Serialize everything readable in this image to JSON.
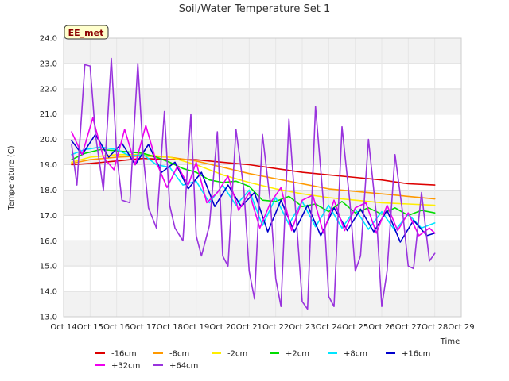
{
  "chart_data": {
    "type": "line",
    "title": "Soil/Water Temperature Set 1",
    "xlabel": "Time",
    "ylabel": "Temperature (C)",
    "badge": "EE_met",
    "x_ticks": [
      "Oct 14",
      "Oct 15",
      "Oct 16",
      "Oct 17",
      "Oct 18",
      "Oct 19",
      "Oct 20",
      "Oct 21",
      "Oct 22",
      "Oct 23",
      "Oct 24",
      "Oct 25",
      "Oct 26",
      "Oct 27",
      "Oct 28",
      "Oct 29"
    ],
    "xlim": [
      14,
      29
    ],
    "ylim": [
      13.0,
      24.0
    ],
    "y_ticks": [
      13.0,
      14.0,
      15.0,
      16.0,
      17.0,
      18.0,
      19.0,
      20.0,
      21.0,
      22.0,
      23.0,
      24.0
    ],
    "grid": true,
    "legend_position": "bottom",
    "series": [
      {
        "name": "-16cm",
        "color": "#dd0000",
        "x": [
          14.3,
          15,
          16,
          17,
          18,
          19,
          20,
          21,
          22,
          23,
          24,
          25,
          26,
          27,
          28
        ],
        "y": [
          19.0,
          19.05,
          19.15,
          19.25,
          19.2,
          19.2,
          19.1,
          19.0,
          18.85,
          18.7,
          18.6,
          18.5,
          18.4,
          18.25,
          18.2
        ]
      },
      {
        "name": "-8cm",
        "color": "#ff9900",
        "x": [
          14.3,
          15,
          16,
          17,
          18,
          19,
          20,
          21,
          22,
          23,
          24,
          25,
          26,
          27,
          28
        ],
        "y": [
          19.05,
          19.2,
          19.3,
          19.35,
          19.3,
          19.15,
          18.9,
          18.65,
          18.45,
          18.25,
          18.05,
          17.95,
          17.85,
          17.75,
          17.65
        ]
      },
      {
        "name": "-2cm",
        "color": "#ffee00",
        "x": [
          14.3,
          15,
          16,
          17,
          18,
          19,
          20,
          21,
          22,
          23,
          24,
          25,
          26,
          27,
          28
        ],
        "y": [
          19.1,
          19.3,
          19.4,
          19.4,
          19.3,
          19.0,
          18.6,
          18.3,
          18.05,
          17.85,
          17.7,
          17.6,
          17.5,
          17.45,
          17.4
        ]
      },
      {
        "name": "+2cm",
        "color": "#00dd00",
        "x": [
          14.3,
          14.8,
          15.4,
          16.0,
          16.5,
          17.0,
          17.5,
          18.0,
          18.5,
          19.0,
          19.5,
          20.0,
          20.5,
          21.0,
          21.5,
          22.0,
          22.5,
          23.0,
          23.5,
          24.0,
          24.5,
          25.0,
          25.5,
          26.0,
          26.5,
          27.0,
          27.5,
          28.0
        ],
        "y": [
          19.2,
          19.45,
          19.6,
          19.55,
          19.5,
          19.45,
          19.3,
          19.1,
          18.85,
          18.7,
          18.4,
          18.3,
          18.35,
          18.15,
          17.6,
          17.55,
          17.75,
          17.35,
          17.45,
          17.15,
          17.55,
          17.1,
          17.3,
          17.05,
          17.3,
          17.0,
          17.2,
          17.1
        ]
      },
      {
        "name": "+8cm",
        "color": "#00e5ff",
        "x": [
          14.3,
          14.8,
          15.4,
          16.0,
          16.5,
          17.0,
          17.5,
          18.0,
          18.5,
          19.0,
          19.5,
          20.0,
          20.5,
          21.0,
          21.5,
          22.0,
          22.5,
          23.0,
          23.5,
          24.0,
          24.5,
          25.0,
          25.5,
          26.0,
          26.5,
          27.0,
          27.5,
          28.0
        ],
        "y": [
          19.4,
          19.6,
          19.7,
          19.6,
          19.35,
          19.4,
          19.0,
          18.9,
          18.2,
          18.35,
          17.5,
          18.2,
          17.4,
          18.0,
          16.6,
          17.7,
          16.65,
          17.55,
          16.55,
          17.4,
          16.5,
          17.25,
          16.45,
          17.15,
          16.4,
          17.05,
          16.5,
          16.7
        ]
      },
      {
        "name": "+16cm",
        "color": "#0000cc",
        "x": [
          14.3,
          14.7,
          15.2,
          15.7,
          16.2,
          16.7,
          17.2,
          17.7,
          18.2,
          18.7,
          19.2,
          19.7,
          20.2,
          20.7,
          21.2,
          21.7,
          22.2,
          22.7,
          23.2,
          23.7,
          24.2,
          24.7,
          25.2,
          25.7,
          26.2,
          26.7,
          27.2,
          27.7,
          28.0
        ],
        "y": [
          19.95,
          19.4,
          20.2,
          19.3,
          19.85,
          19.0,
          19.8,
          18.7,
          19.1,
          18.05,
          18.7,
          17.35,
          18.2,
          17.35,
          17.9,
          16.35,
          17.6,
          16.35,
          17.4,
          16.2,
          17.3,
          16.4,
          17.25,
          16.35,
          17.2,
          15.95,
          16.8,
          16.2,
          16.3
        ]
      },
      {
        "name": "+32cm",
        "color": "#ee00ee",
        "x": [
          14.3,
          14.7,
          15.1,
          15.5,
          15.9,
          16.3,
          16.7,
          17.1,
          17.5,
          17.9,
          18.3,
          18.7,
          19.0,
          19.4,
          19.8,
          20.2,
          20.6,
          21.0,
          21.4,
          21.8,
          22.2,
          22.6,
          23.0,
          23.4,
          23.8,
          24.2,
          24.6,
          25.0,
          25.4,
          25.8,
          26.2,
          26.6,
          27.0,
          27.4,
          27.8,
          28.0
        ],
        "y": [
          20.3,
          19.4,
          20.85,
          19.3,
          18.8,
          20.4,
          19.0,
          20.55,
          19.1,
          18.1,
          18.95,
          18.2,
          19.1,
          17.5,
          17.9,
          18.55,
          17.2,
          17.9,
          16.5,
          17.5,
          18.1,
          16.4,
          17.6,
          17.8,
          16.3,
          17.6,
          16.4,
          17.3,
          17.5,
          16.3,
          17.4,
          16.4,
          17.1,
          16.2,
          16.5,
          16.3
        ]
      },
      {
        "name": "+64cm",
        "color": "#9933dd",
        "x": [
          14.3,
          14.5,
          14.8,
          15.0,
          15.2,
          15.5,
          15.8,
          16.0,
          16.2,
          16.5,
          16.8,
          17.0,
          17.2,
          17.5,
          17.8,
          18.0,
          18.2,
          18.5,
          18.8,
          19.0,
          19.2,
          19.5,
          19.8,
          20.0,
          20.2,
          20.5,
          20.8,
          21.0,
          21.2,
          21.5,
          21.8,
          22.0,
          22.2,
          22.5,
          22.8,
          23.0,
          23.2,
          23.5,
          23.8,
          24.0,
          24.2,
          24.5,
          24.8,
          25.0,
          25.2,
          25.5,
          25.8,
          26.0,
          26.2,
          26.5,
          26.8,
          27.0,
          27.2,
          27.5,
          27.8,
          28.0
        ],
        "y": [
          19.8,
          18.2,
          22.95,
          22.9,
          20.2,
          18.0,
          23.2,
          19.4,
          17.6,
          17.5,
          23.0,
          19.4,
          17.3,
          16.5,
          21.1,
          17.4,
          16.5,
          16.0,
          21.0,
          16.2,
          15.4,
          16.6,
          20.3,
          15.4,
          15.0,
          20.4,
          18.0,
          14.8,
          13.7,
          20.2,
          17.5,
          14.5,
          13.4,
          20.8,
          16.5,
          13.6,
          13.3,
          21.3,
          17.5,
          13.8,
          13.4,
          20.5,
          17.5,
          14.8,
          15.4,
          20.0,
          17.0,
          13.4,
          14.8,
          19.4,
          17.0,
          15.0,
          14.9,
          17.9,
          15.2,
          15.5
        ]
      }
    ]
  }
}
